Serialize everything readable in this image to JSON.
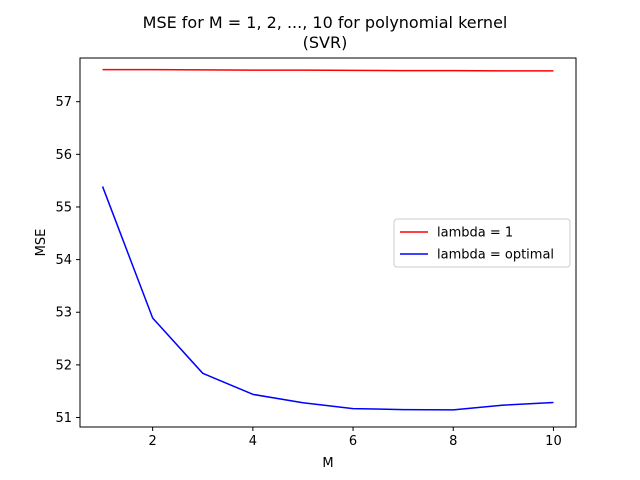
{
  "chart_data": {
    "type": "line",
    "title_lines": [
      "MSE for M = 1, 2, ..., 10 for polynomial kernel",
      "(SVR)"
    ],
    "xlabel": "M",
    "ylabel": "MSE",
    "x": [
      1,
      2,
      3,
      4,
      5,
      6,
      7,
      8,
      9,
      10
    ],
    "xlim": [
      0.55,
      10.45
    ],
    "ylim": [
      50.82,
      57.83
    ],
    "xticks": [
      2,
      4,
      6,
      8,
      10
    ],
    "yticks": [
      51,
      52,
      53,
      54,
      55,
      56,
      57
    ],
    "grid": false,
    "legend_position": "center-right",
    "series": [
      {
        "name": "lambda = 1",
        "color": "#ff0000",
        "values": [
          57.61,
          57.61,
          57.605,
          57.6,
          57.6,
          57.595,
          57.59,
          57.59,
          57.585,
          57.585
        ]
      },
      {
        "name": "lambda = optimal",
        "color": "#0000ff",
        "values": [
          55.39,
          52.89,
          51.84,
          51.44,
          51.28,
          51.17,
          51.15,
          51.145,
          51.235,
          51.285
        ]
      }
    ]
  }
}
